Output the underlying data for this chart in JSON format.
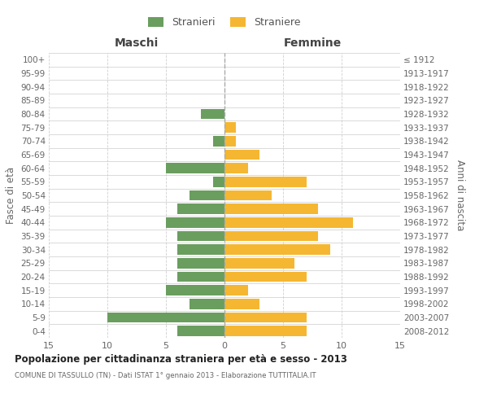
{
  "age_groups": [
    "0-4",
    "5-9",
    "10-14",
    "15-19",
    "20-24",
    "25-29",
    "30-34",
    "35-39",
    "40-44",
    "45-49",
    "50-54",
    "55-59",
    "60-64",
    "65-69",
    "70-74",
    "75-79",
    "80-84",
    "85-89",
    "90-94",
    "95-99",
    "100+"
  ],
  "birth_years": [
    "2008-2012",
    "2003-2007",
    "1998-2002",
    "1993-1997",
    "1988-1992",
    "1983-1987",
    "1978-1982",
    "1973-1977",
    "1968-1972",
    "1963-1967",
    "1958-1962",
    "1953-1957",
    "1948-1952",
    "1943-1947",
    "1938-1942",
    "1933-1937",
    "1928-1932",
    "1923-1927",
    "1918-1922",
    "1913-1917",
    "≤ 1912"
  ],
  "maschi": [
    4,
    10,
    3,
    5,
    4,
    4,
    4,
    4,
    5,
    4,
    3,
    1,
    5,
    0,
    1,
    0,
    2,
    0,
    0,
    0,
    0
  ],
  "femmine": [
    7,
    7,
    3,
    2,
    7,
    6,
    9,
    8,
    11,
    8,
    4,
    7,
    2,
    3,
    1,
    1,
    0,
    0,
    0,
    0,
    0
  ],
  "color_maschi": "#6a9e5f",
  "color_femmine": "#f5b731",
  "title_main": "Popolazione per cittadinanza straniera per età e sesso - 2013",
  "title_sub": "COMUNE DI TASSULLO (TN) - Dati ISTAT 1° gennaio 2013 - Elaborazione TUTTITALIA.IT",
  "xlabel_left": "Maschi",
  "xlabel_right": "Femmine",
  "ylabel_left": "Fasce di età",
  "ylabel_right": "Anni di nascita",
  "legend_maschi": "Stranieri",
  "legend_femmine": "Straniere",
  "xlim": 15,
  "background_color": "#ffffff",
  "grid_color": "#d0d0d0",
  "spine_color": "#cccccc"
}
